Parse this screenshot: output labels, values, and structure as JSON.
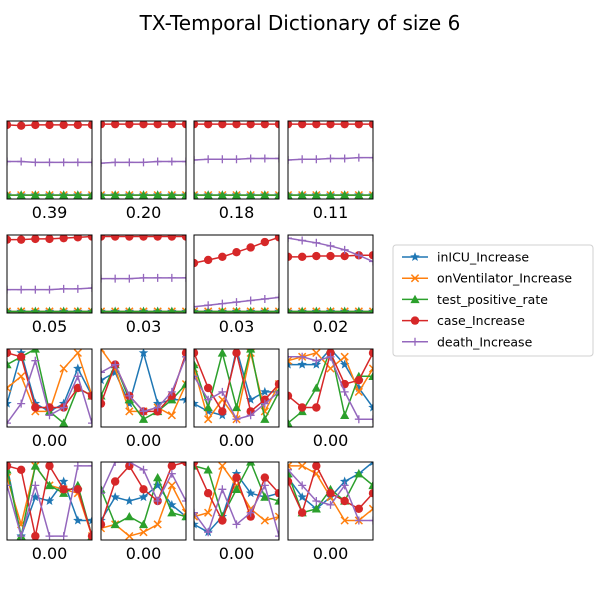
{
  "chart_data": {
    "type": "line",
    "title": "TX-Temporal Dictionary of size 6",
    "grid": false,
    "legend_position": "right",
    "series_styles": [
      {
        "name": "inICU_Increase",
        "color": "#1f77b4",
        "marker": "star"
      },
      {
        "name": "onVentilator_Increase",
        "color": "#ff7f0e",
        "marker": "x"
      },
      {
        "name": "test_positive_rate",
        "color": "#2ca02c",
        "marker": "triangle"
      },
      {
        "name": "case_Increase",
        "color": "#d62728",
        "marker": "circle"
      },
      {
        "name": "death_Increase",
        "color": "#9467bd",
        "marker": "plus"
      }
    ],
    "ylim": [
      0,
      1
    ],
    "x": [
      0,
      1,
      2,
      3,
      4,
      5,
      6
    ],
    "panels": [
      {
        "caption": "0.39",
        "series": {
          "inICU_Increase": [
            0.05,
            0.05,
            0.05,
            0.05,
            0.05,
            0.05,
            0.05
          ],
          "onVentilator_Increase": [
            0.05,
            0.05,
            0.05,
            0.05,
            0.05,
            0.05,
            0.05
          ],
          "test_positive_rate": [
            0.05,
            0.05,
            0.05,
            0.05,
            0.05,
            0.05,
            0.05
          ],
          "case_Increase": [
            0.95,
            0.94,
            0.95,
            0.95,
            0.95,
            0.95,
            0.95
          ],
          "death_Increase": [
            0.48,
            0.48,
            0.47,
            0.47,
            0.47,
            0.47,
            0.47
          ]
        }
      },
      {
        "caption": "0.20",
        "series": {
          "inICU_Increase": [
            0.05,
            0.05,
            0.05,
            0.05,
            0.05,
            0.05,
            0.05
          ],
          "onVentilator_Increase": [
            0.05,
            0.05,
            0.05,
            0.05,
            0.05,
            0.05,
            0.05
          ],
          "test_positive_rate": [
            0.05,
            0.05,
            0.05,
            0.05,
            0.05,
            0.05,
            0.05
          ],
          "case_Increase": [
            0.96,
            0.96,
            0.96,
            0.96,
            0.96,
            0.96,
            0.96
          ],
          "death_Increase": [
            0.46,
            0.47,
            0.47,
            0.47,
            0.48,
            0.48,
            0.48
          ]
        }
      },
      {
        "caption": "0.18",
        "series": {
          "inICU_Increase": [
            0.05,
            0.05,
            0.05,
            0.05,
            0.05,
            0.05,
            0.05
          ],
          "onVentilator_Increase": [
            0.05,
            0.05,
            0.05,
            0.05,
            0.05,
            0.05,
            0.05
          ],
          "test_positive_rate": [
            0.05,
            0.05,
            0.05,
            0.05,
            0.05,
            0.05,
            0.05
          ],
          "case_Increase": [
            0.96,
            0.96,
            0.96,
            0.96,
            0.96,
            0.96,
            0.96
          ],
          "death_Increase": [
            0.5,
            0.51,
            0.51,
            0.51,
            0.52,
            0.52,
            0.52
          ]
        }
      },
      {
        "caption": "0.11",
        "series": {
          "inICU_Increase": [
            0.05,
            0.05,
            0.05,
            0.05,
            0.05,
            0.05,
            0.05
          ],
          "onVentilator_Increase": [
            0.05,
            0.05,
            0.05,
            0.05,
            0.05,
            0.05,
            0.05
          ],
          "test_positive_rate": [
            0.05,
            0.05,
            0.05,
            0.05,
            0.05,
            0.05,
            0.05
          ],
          "case_Increase": [
            0.96,
            0.96,
            0.96,
            0.96,
            0.96,
            0.96,
            0.96
          ],
          "death_Increase": [
            0.5,
            0.51,
            0.51,
            0.52,
            0.52,
            0.53,
            0.53
          ]
        }
      },
      {
        "caption": "0.05",
        "series": {
          "inICU_Increase": [
            0.02,
            0.02,
            0.02,
            0.02,
            0.02,
            0.02,
            0.02
          ],
          "onVentilator_Increase": [
            0.02,
            0.02,
            0.02,
            0.02,
            0.02,
            0.02,
            0.02
          ],
          "test_positive_rate": [
            0.02,
            0.02,
            0.02,
            0.02,
            0.02,
            0.02,
            0.02
          ],
          "case_Increase": [
            0.94,
            0.94,
            0.95,
            0.95,
            0.96,
            0.97,
            0.98
          ],
          "death_Increase": [
            0.3,
            0.3,
            0.3,
            0.3,
            0.31,
            0.31,
            0.32
          ]
        }
      },
      {
        "caption": "0.03",
        "series": {
          "inICU_Increase": [
            0.02,
            0.02,
            0.02,
            0.02,
            0.02,
            0.02,
            0.02
          ],
          "onVentilator_Increase": [
            0.02,
            0.02,
            0.02,
            0.02,
            0.02,
            0.02,
            0.02
          ],
          "test_positive_rate": [
            0.02,
            0.02,
            0.02,
            0.02,
            0.02,
            0.02,
            0.02
          ],
          "case_Increase": [
            0.98,
            0.98,
            0.98,
            0.98,
            0.98,
            0.98,
            0.98
          ],
          "death_Increase": [
            0.44,
            0.44,
            0.44,
            0.45,
            0.45,
            0.45,
            0.45
          ]
        }
      },
      {
        "caption": "0.03",
        "series": {
          "inICU_Increase": [
            0.02,
            0.02,
            0.02,
            0.02,
            0.02,
            0.02,
            0.02
          ],
          "onVentilator_Increase": [
            0.02,
            0.02,
            0.02,
            0.02,
            0.02,
            0.02,
            0.02
          ],
          "test_positive_rate": [
            0.02,
            0.02,
            0.02,
            0.02,
            0.02,
            0.02,
            0.02
          ],
          "case_Increase": [
            0.64,
            0.68,
            0.72,
            0.78,
            0.84,
            0.91,
            0.97
          ],
          "death_Increase": [
            0.08,
            0.1,
            0.12,
            0.14,
            0.16,
            0.18,
            0.2
          ]
        }
      },
      {
        "caption": "0.02",
        "series": {
          "inICU_Increase": [
            0.02,
            0.02,
            0.02,
            0.02,
            0.02,
            0.02,
            0.02
          ],
          "onVentilator_Increase": [
            0.02,
            0.02,
            0.02,
            0.02,
            0.02,
            0.02,
            0.02
          ],
          "test_positive_rate": [
            0.02,
            0.02,
            0.02,
            0.02,
            0.02,
            0.02,
            0.02
          ],
          "case_Increase": [
            0.72,
            0.72,
            0.73,
            0.73,
            0.73,
            0.74,
            0.74
          ],
          "death_Increase": [
            0.96,
            0.93,
            0.9,
            0.86,
            0.81,
            0.74,
            0.66
          ]
        }
      },
      {
        "caption": "0.00",
        "series": {
          "inICU_Increase": [
            0.3,
            0.95,
            0.3,
            0.2,
            0.3,
            0.75,
            0.4
          ],
          "onVentilator_Increase": [
            0.5,
            0.65,
            0.2,
            0.2,
            0.75,
            0.95,
            0.4
          ],
          "test_positive_rate": [
            0.8,
            0.9,
            1.0,
            0.2,
            0.05,
            0.5,
            0.4
          ],
          "case_Increase": [
            0.95,
            0.9,
            0.25,
            0.25,
            0.25,
            0.5,
            0.4
          ],
          "death_Increase": [
            0.05,
            0.3,
            0.85,
            0.15,
            0.25,
            0.65,
            0.05
          ]
        }
      },
      {
        "caption": "0.00",
        "series": {
          "inICU_Increase": [
            0.6,
            0.7,
            0.3,
            0.95,
            0.3,
            0.35,
            0.35
          ],
          "onVentilator_Increase": [
            1.0,
            0.75,
            0.2,
            0.2,
            0.25,
            0.15,
            0.55
          ],
          "test_positive_rate": [
            0.4,
            0.8,
            0.35,
            0.1,
            0.2,
            0.35,
            0.55
          ],
          "case_Increase": [
            0.3,
            0.8,
            0.4,
            0.2,
            0.2,
            0.4,
            0.95
          ],
          "death_Increase": [
            0.7,
            0.8,
            0.4,
            0.2,
            0.25,
            0.45,
            0.9
          ]
        }
      },
      {
        "caption": "0.00",
        "series": {
          "inICU_Increase": [
            0.3,
            0.2,
            0.15,
            1.0,
            0.35,
            0.45,
            0.45
          ],
          "onVentilator_Increase": [
            0.75,
            0.1,
            0.35,
            0.1,
            0.95,
            0.2,
            0.55
          ],
          "test_positive_rate": [
            0.8,
            0.25,
            0.95,
            0.25,
            1.0,
            0.1,
            0.45
          ],
          "case_Increase": [
            0.95,
            0.5,
            0.2,
            0.95,
            0.2,
            0.35,
            0.55
          ],
          "death_Increase": [
            0.65,
            0.35,
            0.45,
            0.1,
            0.15,
            0.3,
            0.45
          ]
        }
      },
      {
        "caption": "0.00",
        "series": {
          "inICU_Increase": [
            0.8,
            0.8,
            0.8,
            1.0,
            0.8,
            0.5,
            0.25
          ],
          "onVentilator_Increase": [
            0.85,
            0.9,
            0.95,
            0.75,
            0.9,
            0.45,
            0.75
          ],
          "test_positive_rate": [
            0.05,
            0.2,
            0.5,
            1.0,
            0.15,
            0.65,
            0.65
          ],
          "case_Increase": [
            0.4,
            0.25,
            0.25,
            0.95,
            0.55,
            0.6,
            0.95
          ],
          "death_Increase": [
            0.9,
            0.9,
            0.85,
            0.9,
            0.45,
            0.1,
            0.1
          ]
        }
      },
      {
        "caption": "0.00",
        "series": {
          "inICU_Increase": [
            0.95,
            0.05,
            0.55,
            0.5,
            0.75,
            0.25,
            0.25
          ],
          "onVentilator_Increase": [
            0.8,
            0.2,
            0.95,
            0.7,
            0.65,
            0.6,
            0.05
          ],
          "test_positive_rate": [
            0.9,
            0.05,
            0.95,
            0.7,
            0.6,
            0.7,
            0.05
          ],
          "case_Increase": [
            0.95,
            0.9,
            0.05,
            0.95,
            0.65,
            0.65,
            0.05
          ],
          "death_Increase": [
            0.7,
            0.05,
            0.7,
            0.05,
            0.05,
            0.95,
            0.95
          ]
        }
      },
      {
        "caption": "0.00",
        "series": {
          "inICU_Increase": [
            0.25,
            0.55,
            0.5,
            0.55,
            0.7,
            0.45,
            0.3
          ],
          "onVentilator_Increase": [
            0.15,
            0.2,
            0.05,
            0.1,
            0.2,
            0.7,
            0.35
          ],
          "test_positive_rate": [
            0.65,
            0.2,
            0.3,
            0.2,
            0.8,
            0.35,
            0.3
          ],
          "case_Increase": [
            0.2,
            0.75,
            0.95,
            0.65,
            0.5,
            0.95,
            1.0
          ],
          "death_Increase": [
            0.6,
            1.0,
            1.0,
            0.9,
            0.5,
            0.85,
            0.5
          ]
        }
      },
      {
        "caption": "0.00",
        "series": {
          "inICU_Increase": [
            0.2,
            0.1,
            0.3,
            0.85,
            0.6,
            0.55,
            0.6
          ],
          "onVentilator_Increase": [
            0.3,
            0.35,
            0.95,
            0.7,
            0.4,
            0.25,
            0.3
          ],
          "test_positive_rate": [
            0.95,
            0.9,
            0.3,
            0.65,
            1.0,
            0.55,
            0.5
          ],
          "case_Increase": [
            1.0,
            0.6,
            0.25,
            0.8,
            0.3,
            0.8,
            0.6
          ],
          "death_Increase": [
            0.35,
            0.1,
            0.65,
            0.2,
            0.35,
            0.7,
            0.05
          ]
        }
      },
      {
        "caption": "0.00",
        "series": {
          "inICU_Increase": [
            0.8,
            0.55,
            0.4,
            0.55,
            0.75,
            0.85,
            1.0
          ],
          "onVentilator_Increase": [
            0.95,
            0.95,
            0.85,
            0.55,
            0.25,
            0.25,
            0.4
          ],
          "test_positive_rate": [
            0.85,
            0.35,
            0.4,
            0.65,
            0.5,
            0.85,
            0.7
          ],
          "case_Increase": [
            0.75,
            0.35,
            0.95,
            0.6,
            0.5,
            0.4,
            0.6
          ],
          "death_Increase": [
            0.9,
            0.7,
            0.5,
            0.45,
            0.7,
            0.25,
            0.25
          ]
        }
      }
    ]
  }
}
